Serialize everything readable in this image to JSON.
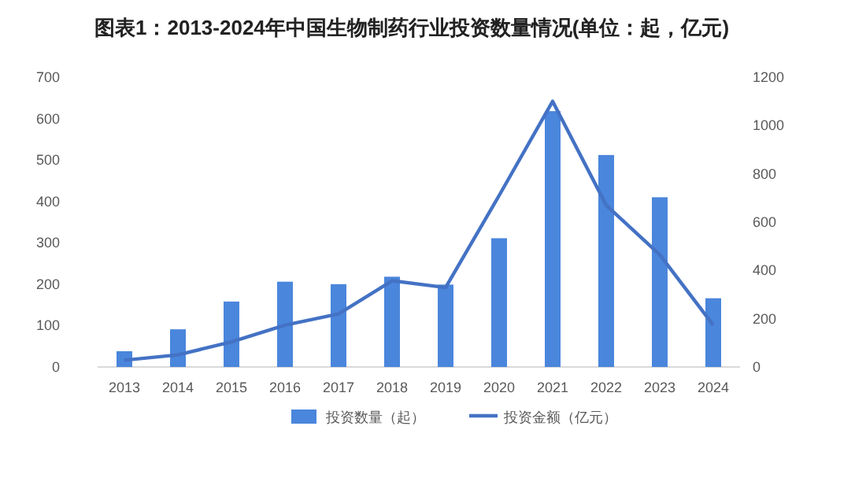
{
  "chart_data": {
    "type": "bar",
    "title": "图表1：2013-2024年中国生物制药行业投资数量情况(单位：起，亿元)",
    "categories": [
      "2013",
      "2014",
      "2015",
      "2016",
      "2017",
      "2018",
      "2019",
      "2020",
      "2021",
      "2022",
      "2023",
      "2024"
    ],
    "series": [
      {
        "name": "投资数量（起）",
        "color": "#4a86dc",
        "values": [
          38,
          91,
          158,
          206,
          200,
          218,
          199,
          311,
          618,
          512,
          410,
          166
        ]
      },
      {
        "name": "投资金额（亿元）",
        "type": "line",
        "axis": "y2",
        "color": "#4472c4",
        "values": [
          28,
          50,
          104,
          173,
          220,
          357,
          329,
          710,
          1100,
          670,
          465,
          173
        ]
      }
    ],
    "ylim": [
      0,
      700
    ],
    "yticks": [
      0,
      100,
      200,
      300,
      400,
      500,
      600,
      700
    ],
    "y2lim": [
      0,
      1200
    ],
    "y2ticks": [
      0,
      200,
      400,
      600,
      800,
      1000,
      1200
    ],
    "legend": "bottom",
    "grid": false,
    "marker": "none"
  }
}
